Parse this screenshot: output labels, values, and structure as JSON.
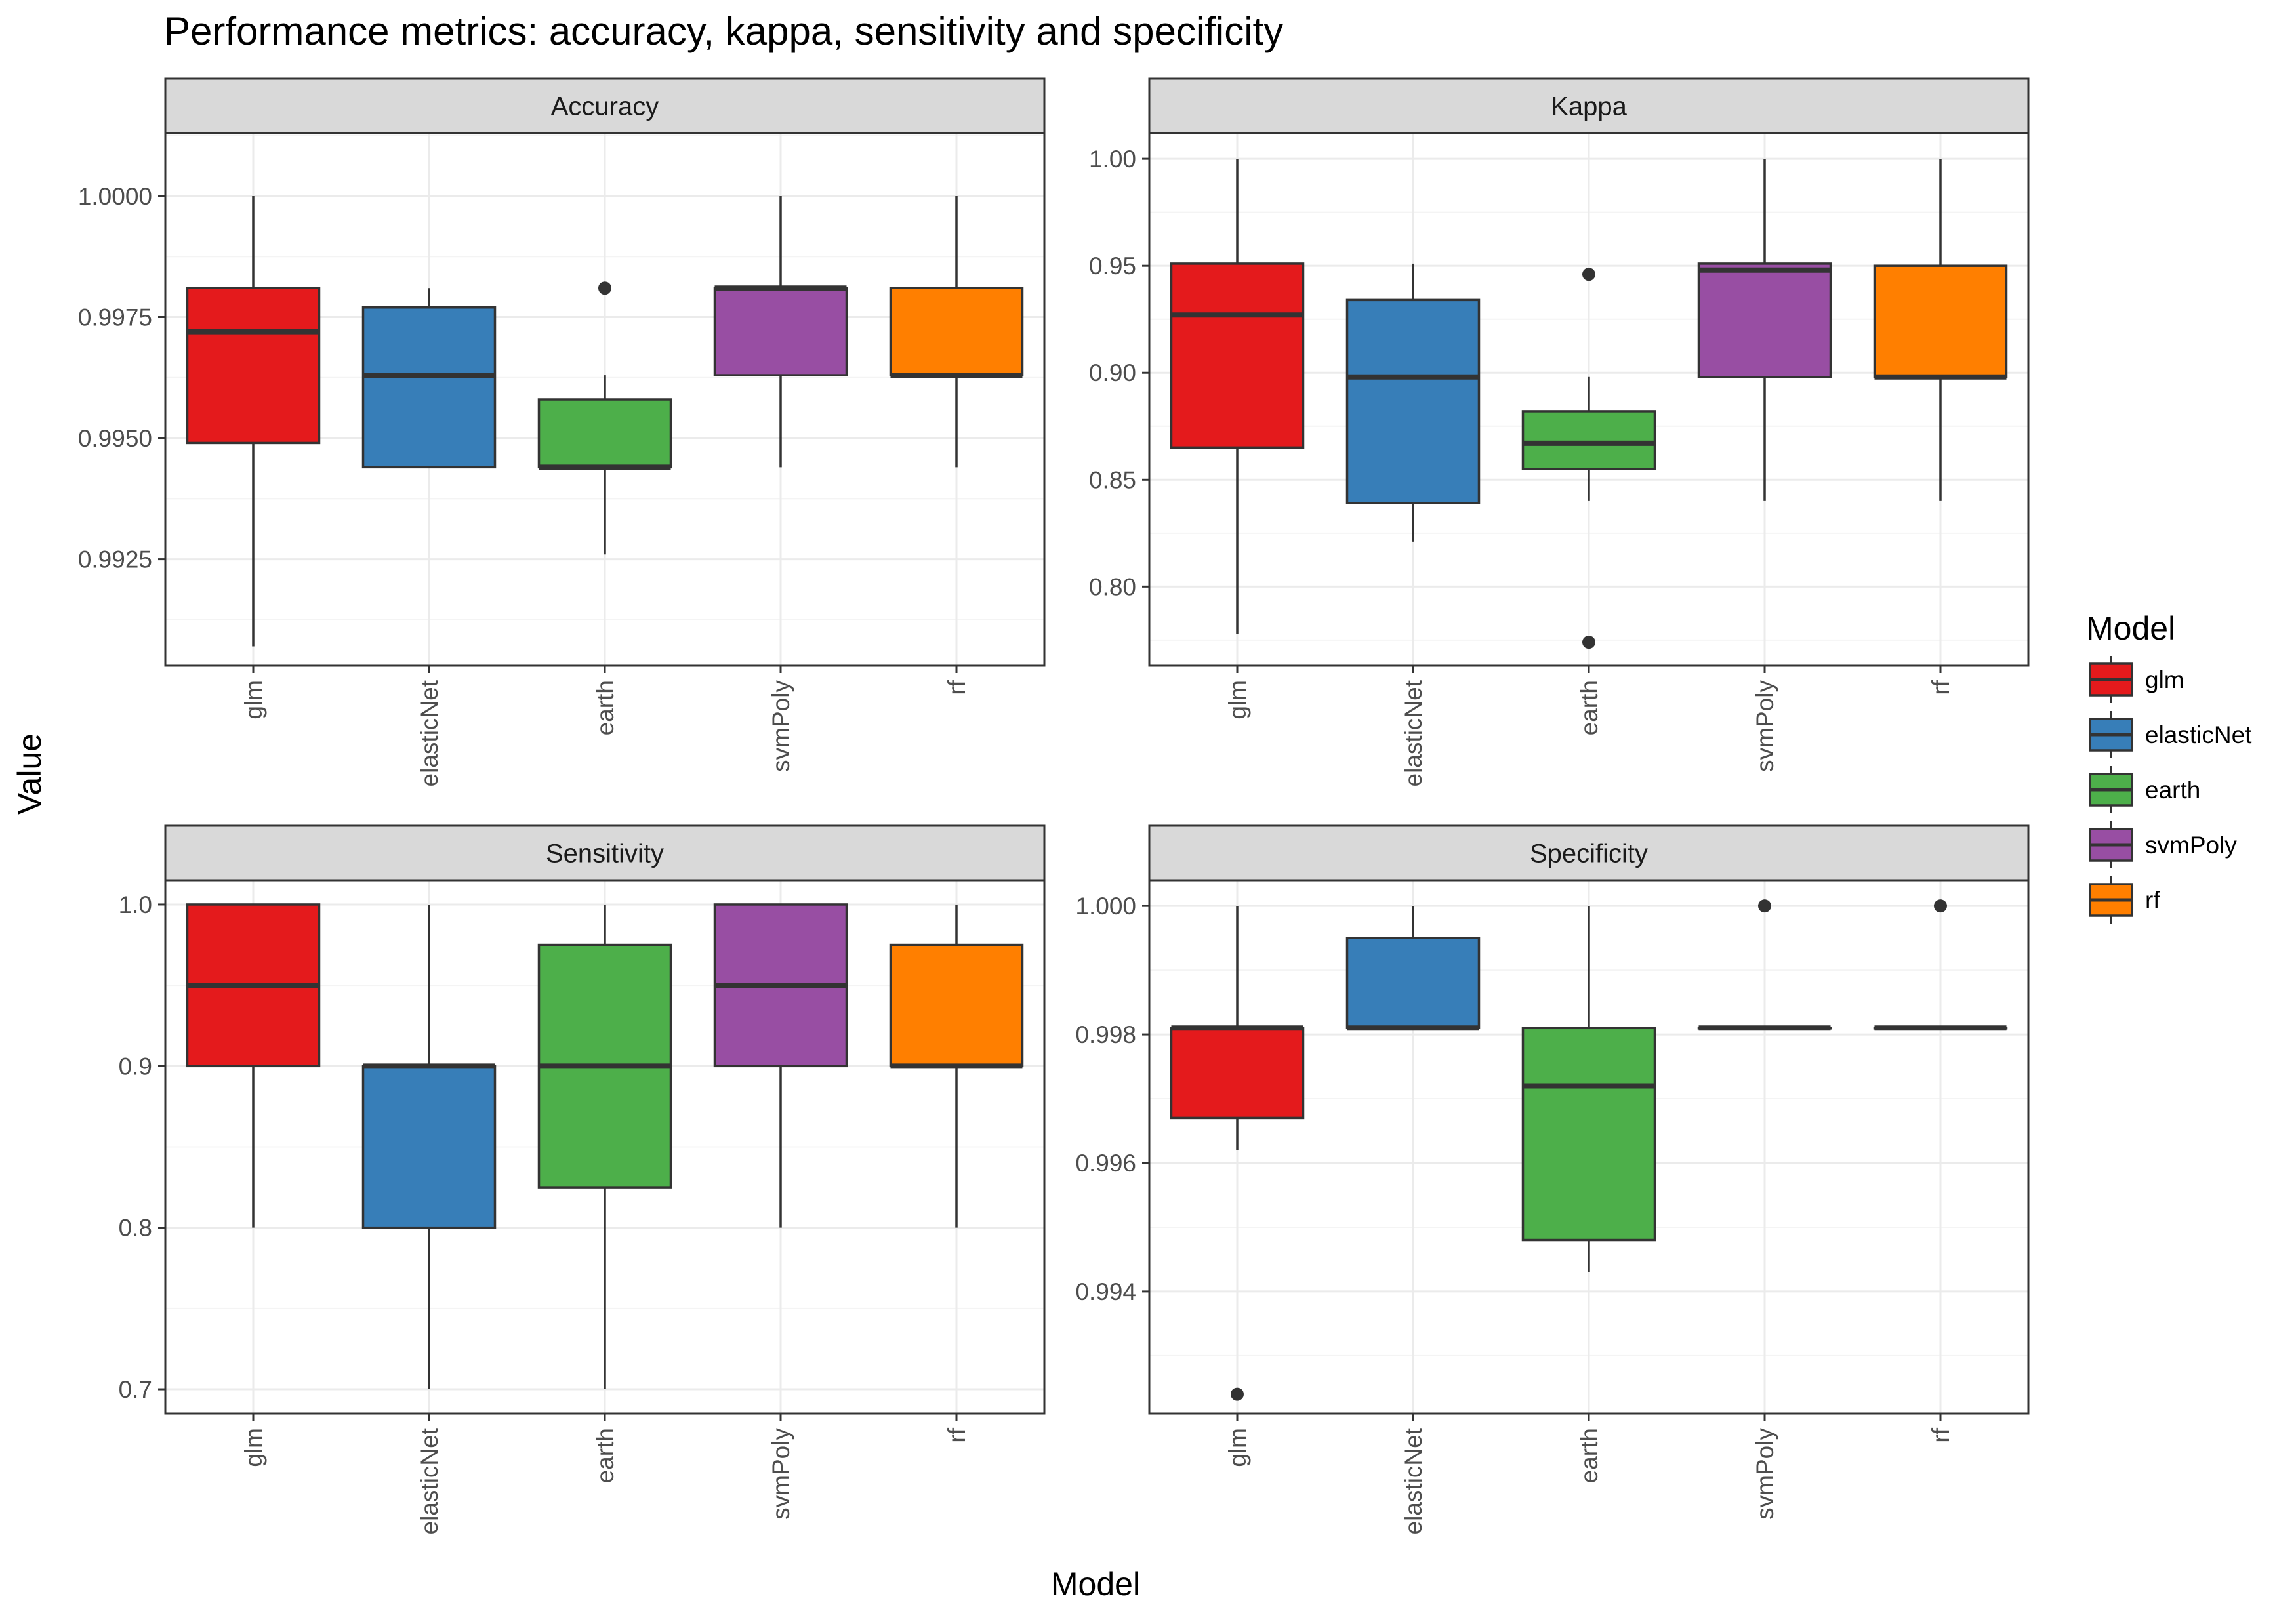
{
  "title": "Performance metrics: accuracy, kappa, sensitivity and specificity",
  "xlabel": "Model",
  "ylabel": "Value",
  "legend": {
    "title": "Model",
    "items": [
      "glm",
      "elasticNet",
      "earth",
      "svmPoly",
      "rf"
    ]
  },
  "colors": {
    "glm": "#E41A1C",
    "elasticNet": "#377EB8",
    "earth": "#4DAF4A",
    "svmPoly": "#984EA3",
    "rf": "#FF7F00",
    "strip": "#D9D9D9",
    "grid_major": "#EBEBEB",
    "grid_minor": "#F4F4F4",
    "border": "#333333"
  },
  "chart_data": [
    {
      "type": "boxplot",
      "facet": "Accuracy",
      "categories": [
        "glm",
        "elasticNet",
        "earth",
        "svmPoly",
        "rf"
      ],
      "ylim": [
        0.9903,
        1.0013
      ],
      "yticks": [
        0.9925,
        0.995,
        0.9975,
        1.0
      ],
      "ytick_labels": [
        "0.9925",
        "0.9950",
        "0.9975",
        "1.0000"
      ],
      "boxes": [
        {
          "min": 0.9907,
          "q1": 0.9949,
          "median": 0.9972,
          "q3": 0.9981,
          "max": 1.0,
          "outliers": []
        },
        {
          "min": 0.9944,
          "q1": 0.9944,
          "median": 0.9963,
          "q3": 0.9977,
          "max": 0.9981,
          "outliers": []
        },
        {
          "min": 0.9926,
          "q1": 0.9944,
          "median": 0.9944,
          "q3": 0.9958,
          "max": 0.9963,
          "outliers": [
            0.9981
          ]
        },
        {
          "min": 0.9944,
          "q1": 0.9963,
          "median": 0.9981,
          "q3": 0.9981,
          "max": 1.0,
          "outliers": []
        },
        {
          "min": 0.9944,
          "q1": 0.9963,
          "median": 0.9963,
          "q3": 0.9981,
          "max": 1.0,
          "outliers": []
        }
      ]
    },
    {
      "type": "boxplot",
      "facet": "Kappa",
      "categories": [
        "glm",
        "elasticNet",
        "earth",
        "svmPoly",
        "rf"
      ],
      "ylim": [
        0.763,
        1.012
      ],
      "yticks": [
        0.8,
        0.85,
        0.9,
        0.95,
        1.0
      ],
      "ytick_labels": [
        "0.80",
        "0.85",
        "0.90",
        "0.95",
        "1.00"
      ],
      "boxes": [
        {
          "min": 0.778,
          "q1": 0.865,
          "median": 0.927,
          "q3": 0.951,
          "max": 1.0,
          "outliers": []
        },
        {
          "min": 0.821,
          "q1": 0.839,
          "median": 0.898,
          "q3": 0.934,
          "max": 0.951,
          "outliers": []
        },
        {
          "min": 0.84,
          "q1": 0.855,
          "median": 0.867,
          "q3": 0.882,
          "max": 0.898,
          "outliers": [
            0.946,
            0.774
          ]
        },
        {
          "min": 0.84,
          "q1": 0.898,
          "median": 0.948,
          "q3": 0.951,
          "max": 1.0,
          "outliers": []
        },
        {
          "min": 0.84,
          "q1": 0.898,
          "median": 0.898,
          "q3": 0.95,
          "max": 1.0,
          "outliers": []
        }
      ]
    },
    {
      "type": "boxplot",
      "facet": "Sensitivity",
      "categories": [
        "glm",
        "elasticNet",
        "earth",
        "svmPoly",
        "rf"
      ],
      "ylim": [
        0.685,
        1.015
      ],
      "yticks": [
        0.7,
        0.8,
        0.9,
        1.0
      ],
      "ytick_labels": [
        "0.7",
        "0.8",
        "0.9",
        "1.0"
      ],
      "boxes": [
        {
          "min": 0.8,
          "q1": 0.9,
          "median": 0.95,
          "q3": 1.0,
          "max": 1.0,
          "outliers": []
        },
        {
          "min": 0.7,
          "q1": 0.8,
          "median": 0.9,
          "q3": 0.9,
          "max": 1.0,
          "outliers": []
        },
        {
          "min": 0.7,
          "q1": 0.825,
          "median": 0.9,
          "q3": 0.975,
          "max": 1.0,
          "outliers": []
        },
        {
          "min": 0.8,
          "q1": 0.9,
          "median": 0.95,
          "q3": 1.0,
          "max": 1.0,
          "outliers": []
        },
        {
          "min": 0.8,
          "q1": 0.9,
          "median": 0.9,
          "q3": 0.975,
          "max": 1.0,
          "outliers": []
        }
      ]
    },
    {
      "type": "boxplot",
      "facet": "Specificity",
      "categories": [
        "glm",
        "elasticNet",
        "earth",
        "svmPoly",
        "rf"
      ],
      "ylim": [
        0.9921,
        1.0004
      ],
      "yticks": [
        0.994,
        0.996,
        0.998,
        1.0
      ],
      "ytick_labels": [
        "0.994",
        "0.996",
        "0.998",
        "1.000"
      ],
      "boxes": [
        {
          "min": 0.9962,
          "q1": 0.9967,
          "median": 0.9981,
          "q3": 0.9981,
          "max": 1.0,
          "outliers": [
            0.9924
          ]
        },
        {
          "min": 0.9981,
          "q1": 0.9981,
          "median": 0.9981,
          "q3": 0.9995,
          "max": 1.0,
          "outliers": []
        },
        {
          "min": 0.9943,
          "q1": 0.9948,
          "median": 0.9972,
          "q3": 0.9981,
          "max": 1.0,
          "outliers": []
        },
        {
          "min": 0.9981,
          "q1": 0.9981,
          "median": 0.9981,
          "q3": 0.9981,
          "max": 0.9981,
          "outliers": [
            1.0
          ]
        },
        {
          "min": 0.9981,
          "q1": 0.9981,
          "median": 0.9981,
          "q3": 0.9981,
          "max": 0.9981,
          "outliers": [
            1.0
          ]
        }
      ]
    }
  ]
}
